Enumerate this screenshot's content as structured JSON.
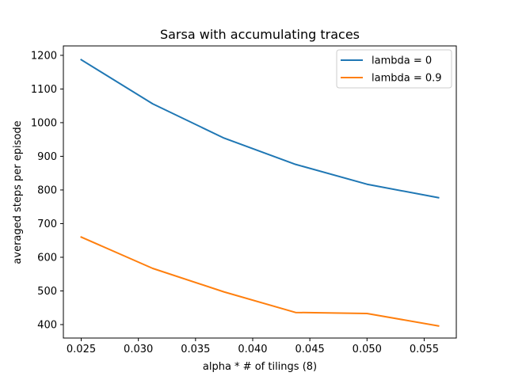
{
  "chart_data": {
    "type": "line",
    "title": "Sarsa with accumulating traces",
    "xlabel": "alpha * # of tilings (8)",
    "ylabel": "averaged steps per episode",
    "x": [
      0.025,
      0.03125,
      0.0375,
      0.04375,
      0.05,
      0.05625
    ],
    "xlim": [
      0.02344,
      0.05781
    ],
    "ylim": [
      360,
      1228
    ],
    "xticks": [
      0.025,
      0.03,
      0.035,
      0.04,
      0.045,
      0.05,
      0.055
    ],
    "xtick_labels": [
      "0.025",
      "0.030",
      "0.035",
      "0.040",
      "0.045",
      "0.050",
      "0.055"
    ],
    "yticks": [
      400,
      500,
      600,
      700,
      800,
      900,
      1000,
      1100,
      1200
    ],
    "ytick_labels": [
      "400",
      "500",
      "600",
      "700",
      "800",
      "900",
      "1000",
      "1100",
      "1200"
    ],
    "grid": false,
    "legend_position": "top-right",
    "series": [
      {
        "name": "lambda = 0",
        "color": "#1f77b4",
        "values": [
          1187,
          1056,
          954,
          876,
          817,
          777
        ]
      },
      {
        "name": "lambda = 0.9",
        "color": "#ff7f0e",
        "values": [
          660,
          567,
          497,
          436,
          433,
          396
        ]
      }
    ]
  }
}
